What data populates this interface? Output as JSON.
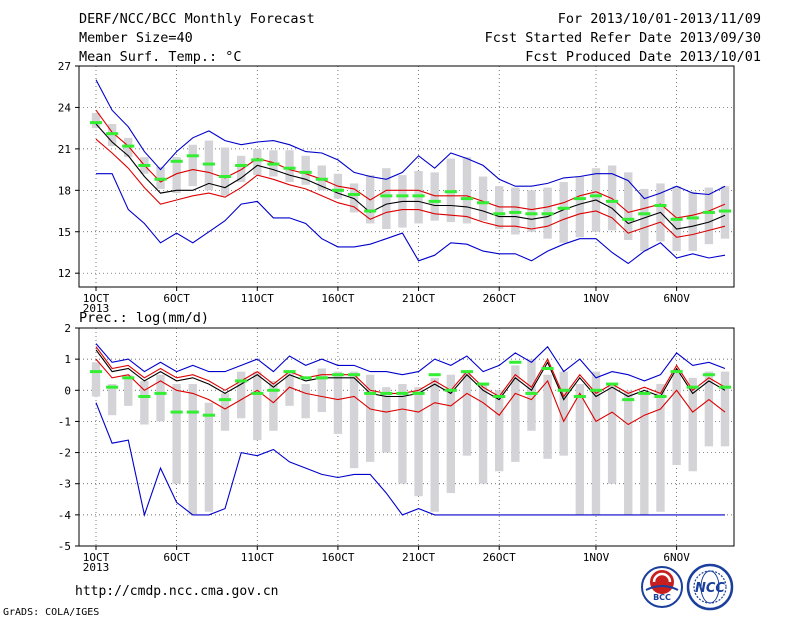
{
  "header": {
    "title": "DERF/NCC/BCC Monthly Forecast",
    "member_size": "Member Size=40",
    "variable": "Mean Surf. Temp.: °C",
    "forecast_period": "For 2013/10/01-2013/11/09",
    "fcst_started": "Fcst Started Refer Date 2013/09/30",
    "fcst_produced": "Fcst Produced Date 2013/10/01"
  },
  "footer": {
    "url": "http://cmdp.ncc.cma.gov.cn",
    "grads": "GrADS: COLA/IGES",
    "logo_bcc": "BCC",
    "logo_ncc": "NCC"
  },
  "colors": {
    "extreme": "#0000cc",
    "spread": "#dd0000",
    "mean": "#000000",
    "marker": "#33ee33",
    "box": "#d4d4d8"
  },
  "x_labels": [
    {
      "day": 1,
      "label": "1OCT"
    },
    {
      "day": 6,
      "label": "6OCT"
    },
    {
      "day": 11,
      "label": "11OCT"
    },
    {
      "day": 16,
      "label": "16OCT"
    },
    {
      "day": 21,
      "label": "21OCT"
    },
    {
      "day": 26,
      "label": "26OCT"
    },
    {
      "day": 32,
      "label": "1NOV"
    },
    {
      "day": 37,
      "label": "6NOV"
    }
  ],
  "x_year": "2013",
  "chart_data": [
    {
      "type": "line",
      "title": "Mean Surf. Temp.: °C",
      "x_range": [
        1,
        40
      ],
      "ylim": [
        11,
        27
      ],
      "yticks": [
        12,
        15,
        18,
        21,
        24,
        27
      ],
      "grid": true,
      "box": {
        "low": [
          22.5,
          21.2,
          20.4,
          19.2,
          18.1,
          17.8,
          18.3,
          18.0,
          17.6,
          18.6,
          19.1,
          19.0,
          18.6,
          18.4,
          18.0,
          17.4,
          16.4,
          15.6,
          15.2,
          15.3,
          15.6,
          15.8,
          15.7,
          15.6,
          15.8,
          15.2,
          14.8,
          15.0,
          14.5,
          14.2,
          14.6,
          15.0,
          15.1,
          14.4,
          13.6,
          14.3,
          13.6,
          13.6,
          14.1,
          14.5
        ],
        "high": [
          23.6,
          22.8,
          21.8,
          20.4,
          19.7,
          20.4,
          21.3,
          21.6,
          21.1,
          20.5,
          21.0,
          20.9,
          20.9,
          20.5,
          19.8,
          19.2,
          18.5,
          19.1,
          19.6,
          19.1,
          19.4,
          19.3,
          20.3,
          20.4,
          19.0,
          18.3,
          18.2,
          18.0,
          18.2,
          18.6,
          19.0,
          19.6,
          19.8,
          19.3,
          18.1,
          18.5,
          18.3,
          17.9,
          18.2,
          18.3
        ]
      },
      "series": [
        {
          "values": [
            26.0,
            23.8,
            22.6,
            20.8,
            19.5,
            20.8,
            21.8,
            22.3,
            21.6,
            21.3,
            21.5,
            21.6,
            21.3,
            20.8,
            20.7,
            20.2,
            19.3,
            19.0,
            18.8,
            19.3,
            20.5,
            19.6,
            20.7,
            20.3,
            19.8,
            18.8,
            18.3,
            18.3,
            18.5,
            18.9,
            19.0,
            19.2,
            19.2,
            18.7,
            17.4,
            17.8,
            18.3,
            17.8,
            17.7,
            18.3
          ]
        },
        {
          "values": [
            23.8,
            22.2,
            21.2,
            19.8,
            18.6,
            19.2,
            19.5,
            19.3,
            18.9,
            19.5,
            20.3,
            20.0,
            19.5,
            19.2,
            18.8,
            18.3,
            18.1,
            17.3,
            18.0,
            18.0,
            18.0,
            17.6,
            17.6,
            17.6,
            17.2,
            16.8,
            16.8,
            16.6,
            16.8,
            17.1,
            17.6,
            17.9,
            17.4,
            16.4,
            16.7,
            17.0,
            16.0,
            16.2,
            16.5,
            17.0
          ]
        },
        {
          "values": [
            22.8,
            21.5,
            20.5,
            19.0,
            17.8,
            18.0,
            18.0,
            18.5,
            18.2,
            18.9,
            19.8,
            19.5,
            19.1,
            18.8,
            18.3,
            17.8,
            17.4,
            16.4,
            17.0,
            17.2,
            17.2,
            16.9,
            16.9,
            16.8,
            16.5,
            16.1,
            16.1,
            15.9,
            16.1,
            16.6,
            17.0,
            17.3,
            16.7,
            15.6,
            16.0,
            16.4,
            15.2,
            15.4,
            15.7,
            16.2
          ]
        },
        {
          "values": [
            21.7,
            20.7,
            19.6,
            18.2,
            17.0,
            17.3,
            17.6,
            17.8,
            17.5,
            18.2,
            19.1,
            18.8,
            18.4,
            18.1,
            17.6,
            17.1,
            16.8,
            15.9,
            16.4,
            16.6,
            16.6,
            16.3,
            16.2,
            16.1,
            15.7,
            15.4,
            15.4,
            15.2,
            15.4,
            15.9,
            16.3,
            16.5,
            16.0,
            14.9,
            15.3,
            15.7,
            14.6,
            14.8,
            15.1,
            15.4
          ]
        },
        {
          "values": [
            19.2,
            19.2,
            16.6,
            15.6,
            14.2,
            14.9,
            14.2,
            15.0,
            15.8,
            17.0,
            17.2,
            16.0,
            16.0,
            15.6,
            14.5,
            13.9,
            13.9,
            14.1,
            14.5,
            14.9,
            12.9,
            13.3,
            14.2,
            14.1,
            13.6,
            13.4,
            13.4,
            12.9,
            13.6,
            14.1,
            14.5,
            14.5,
            13.5,
            12.7,
            13.6,
            14.2,
            13.1,
            13.4,
            13.1,
            13.3
          ]
        }
      ],
      "markers": [
        22.9,
        22.1,
        21.2,
        19.8,
        18.8,
        20.1,
        20.5,
        19.9,
        19.0,
        19.8,
        20.2,
        19.9,
        19.6,
        19.3,
        18.8,
        18.0,
        17.7,
        16.5,
        17.6,
        17.6,
        17.6,
        17.2,
        17.9,
        17.4,
        17.1,
        16.3,
        16.4,
        16.3,
        16.3,
        16.7,
        17.4,
        17.6,
        17.2,
        15.9,
        16.3,
        16.9,
        15.9,
        16.0,
        16.4,
        16.5
      ]
    },
    {
      "type": "line",
      "title": "Prec.: log(mm/d)",
      "x_range": [
        1,
        40
      ],
      "ylim": [
        -5,
        2
      ],
      "yticks": [
        -5,
        -4,
        -3,
        -2,
        -1,
        0,
        1,
        2
      ],
      "grid": true,
      "box": {
        "low": [
          -0.2,
          -0.8,
          -0.5,
          -1.1,
          -1.0,
          -3.0,
          -4.0,
          -3.9,
          -1.3,
          -0.9,
          -1.6,
          -1.3,
          -0.5,
          -0.9,
          -0.7,
          -1.4,
          -2.5,
          -2.3,
          -2.0,
          -3.0,
          -3.4,
          -3.9,
          -3.3,
          -2.1,
          -3.0,
          -2.6,
          -2.3,
          -1.3,
          -2.2,
          -2.1,
          -4.0,
          -4.0,
          -3.0,
          -4.0,
          -4.0,
          -3.9,
          -2.4,
          -2.6,
          -1.8,
          -1.8
        ],
        "high": [
          0.9,
          0.2,
          0.5,
          0.3,
          0.5,
          0.2,
          0.2,
          -0.4,
          -0.1,
          0.6,
          0.6,
          0.3,
          0.6,
          0.2,
          0.7,
          0.6,
          0.6,
          0.5,
          0.1,
          0.2,
          0.1,
          0.4,
          0.5,
          0.6,
          0.2,
          0.0,
          0.8,
          1.0,
          0.5,
          0.6,
          0.2,
          0.6,
          0.2,
          0.0,
          -0.1,
          0.2,
          0.6,
          0.4,
          0.6,
          0.6
        ]
      },
      "series": [
        {
          "values": [
            1.5,
            0.9,
            1.0,
            0.6,
            0.9,
            0.6,
            0.8,
            0.6,
            0.6,
            0.8,
            1.0,
            0.6,
            1.1,
            0.8,
            1.0,
            0.8,
            0.8,
            0.6,
            0.6,
            0.5,
            0.6,
            1.0,
            0.8,
            1.1,
            0.6,
            0.8,
            1.2,
            0.9,
            1.4,
            0.6,
            1.0,
            0.4,
            0.6,
            0.5,
            0.3,
            0.5,
            1.2,
            0.8,
            0.9,
            0.7
          ]
        },
        {
          "values": [
            1.4,
            0.7,
            0.8,
            0.4,
            0.7,
            0.4,
            0.5,
            0.3,
            0.0,
            0.3,
            0.6,
            0.2,
            0.6,
            0.4,
            0.5,
            0.5,
            0.5,
            0.0,
            -0.1,
            -0.1,
            0.0,
            0.3,
            0.0,
            0.6,
            0.1,
            -0.2,
            0.5,
            0.1,
            1.0,
            -0.2,
            0.5,
            -0.1,
            0.2,
            -0.1,
            0.1,
            -0.1,
            0.8,
            0.0,
            0.4,
            0.1
          ]
        },
        {
          "values": [
            1.3,
            0.6,
            0.7,
            0.3,
            0.6,
            0.3,
            0.4,
            0.2,
            -0.1,
            0.2,
            0.5,
            0.1,
            0.5,
            0.3,
            0.4,
            0.4,
            0.4,
            -0.1,
            -0.2,
            -0.2,
            -0.1,
            0.2,
            -0.1,
            0.5,
            0.0,
            -0.3,
            0.4,
            0.0,
            0.9,
            -0.3,
            0.4,
            -0.2,
            0.1,
            -0.2,
            0.0,
            -0.2,
            0.7,
            -0.1,
            0.3,
            0.0
          ]
        },
        {
          "values": [
            1.0,
            0.4,
            0.5,
            0.0,
            0.3,
            0.0,
            -0.1,
            -0.3,
            -0.6,
            -0.3,
            0.0,
            -0.4,
            0.1,
            -0.1,
            -0.2,
            -0.3,
            -0.2,
            -0.6,
            -0.7,
            -0.6,
            -0.7,
            -0.4,
            -0.5,
            -0.1,
            -0.4,
            -0.8,
            -0.1,
            -0.3,
            0.3,
            -1.0,
            -0.1,
            -1.0,
            -0.7,
            -1.1,
            -0.8,
            -0.6,
            0.0,
            -0.7,
            -0.3,
            -0.7
          ]
        },
        {
          "values": [
            -0.4,
            -1.7,
            -1.6,
            -4.0,
            -2.5,
            -3.6,
            -4.0,
            -4.0,
            -3.8,
            -2.0,
            -2.1,
            -1.9,
            -2.3,
            -2.5,
            -2.7,
            -2.8,
            -2.7,
            -2.7,
            -3.3,
            -4.0,
            -3.8,
            -4.0,
            -4.0,
            -4.0,
            -4.0,
            -4.0,
            -4.0,
            -4.0,
            -4.0,
            -4.0,
            -4.0,
            -4.0,
            -4.0,
            -4.0,
            -4.0,
            -4.0,
            -4.0,
            -4.0,
            -4.0,
            -4.0
          ]
        }
      ],
      "markers": [
        0.6,
        0.1,
        0.4,
        -0.2,
        -0.1,
        -0.7,
        -0.7,
        -0.8,
        -0.3,
        0.3,
        -0.1,
        0.0,
        0.6,
        0.4,
        0.4,
        0.5,
        0.5,
        -0.1,
        -0.1,
        -0.1,
        -0.1,
        0.5,
        0.0,
        0.6,
        0.2,
        -0.2,
        0.9,
        -0.1,
        0.7,
        0.0,
        -0.2,
        0.0,
        0.2,
        -0.3,
        -0.1,
        -0.2,
        0.6,
        0.1,
        0.5,
        0.1
      ]
    }
  ]
}
